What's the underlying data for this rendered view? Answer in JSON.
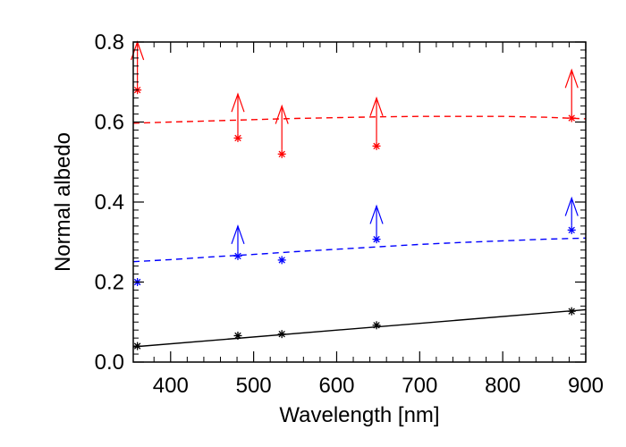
{
  "chart_data": {
    "type": "scatter",
    "title": "",
    "xlabel": "Wavelength [nm]",
    "ylabel": "Normal albedo",
    "xlim": [
      355,
      900
    ],
    "ylim": [
      0.0,
      0.8
    ],
    "x_ticks": [
      400,
      500,
      600,
      700,
      800,
      900
    ],
    "y_ticks": [
      0.0,
      0.2,
      0.4,
      0.6,
      0.8
    ],
    "x_tick_labels": [
      "400",
      "500",
      "600",
      "700",
      "800",
      "900"
    ],
    "y_tick_labels": [
      "0.0",
      "0.2",
      "0.4",
      "0.6",
      "0.8"
    ],
    "grid": false,
    "series": [
      {
        "name": "red",
        "color": "#ff0000",
        "points": [
          {
            "x": 360,
            "y": 0.68,
            "lower_limit_arrow_to": 0.8
          },
          {
            "x": 481,
            "y": 0.56,
            "lower_limit_arrow_to": 0.67
          },
          {
            "x": 534,
            "y": 0.52,
            "lower_limit_arrow_to": 0.64
          },
          {
            "x": 648,
            "y": 0.54,
            "lower_limit_arrow_to": 0.66
          },
          {
            "x": 883,
            "y": 0.61,
            "lower_limit_arrow_to": 0.73
          }
        ],
        "model_line": {
          "style": "dashed",
          "x": [
            355,
            400,
            450,
            500,
            550,
            600,
            650,
            700,
            750,
            800,
            850,
            900
          ],
          "y": [
            0.597,
            0.6,
            0.603,
            0.606,
            0.609,
            0.611,
            0.613,
            0.614,
            0.614,
            0.614,
            0.612,
            0.608
          ]
        }
      },
      {
        "name": "blue",
        "color": "#0000ff",
        "points": [
          {
            "x": 360,
            "y": 0.2
          },
          {
            "x": 481,
            "y": 0.265,
            "lower_limit_arrow_to": 0.34
          },
          {
            "x": 534,
            "y": 0.255
          },
          {
            "x": 648,
            "y": 0.307,
            "lower_limit_arrow_to": 0.39
          },
          {
            "x": 883,
            "y": 0.33,
            "lower_limit_arrow_to": 0.41
          }
        ],
        "model_line": {
          "style": "dashed",
          "x": [
            355,
            400,
            450,
            500,
            550,
            600,
            650,
            700,
            750,
            800,
            850,
            900
          ],
          "y": [
            0.251,
            0.256,
            0.263,
            0.269,
            0.276,
            0.282,
            0.288,
            0.294,
            0.299,
            0.303,
            0.307,
            0.31
          ]
        }
      },
      {
        "name": "black",
        "color": "#000000",
        "points": [
          {
            "x": 360,
            "y": 0.04
          },
          {
            "x": 481,
            "y": 0.066
          },
          {
            "x": 534,
            "y": 0.07
          },
          {
            "x": 648,
            "y": 0.092
          },
          {
            "x": 883,
            "y": 0.127
          }
        ],
        "model_line": {
          "style": "solid",
          "x": [
            355,
            900
          ],
          "y": [
            0.038,
            0.131
          ]
        }
      }
    ]
  }
}
